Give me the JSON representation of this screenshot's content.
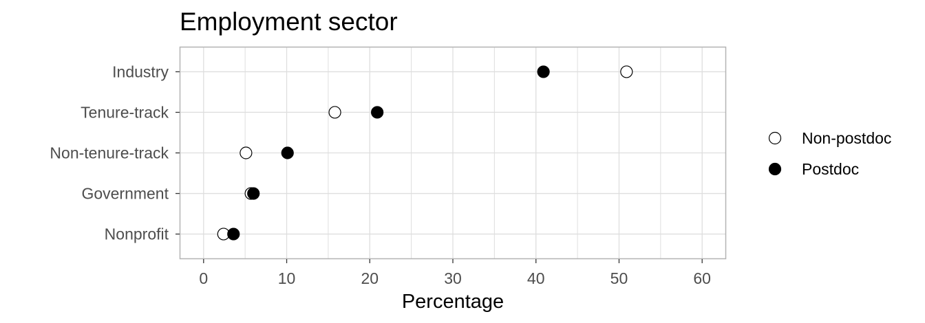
{
  "chart_data": {
    "type": "scatter",
    "title": "Employment sector",
    "xlabel": "Percentage",
    "ylabel": "",
    "xlim": [
      -2.8,
      62.8
    ],
    "xticks": [
      0,
      10,
      20,
      30,
      40,
      50,
      60
    ],
    "categories": [
      "Industry",
      "Tenure-track",
      "Non-tenure-track",
      "Government",
      "Nonprofit"
    ],
    "series": [
      {
        "name": "Non-postdoc",
        "marker": "open-circle",
        "values": [
          50.9,
          15.8,
          5.1,
          5.7,
          2.4
        ]
      },
      {
        "name": "Postdoc",
        "marker": "filled-circle",
        "values": [
          40.9,
          20.9,
          10.1,
          6.0,
          3.6
        ]
      }
    ],
    "grid": true,
    "legend_position": "right",
    "colors": {
      "panel_border": "#b3b3b3",
      "grid": "#dedede",
      "marker": "#000000",
      "tick_text": "#4d4d4d"
    }
  }
}
